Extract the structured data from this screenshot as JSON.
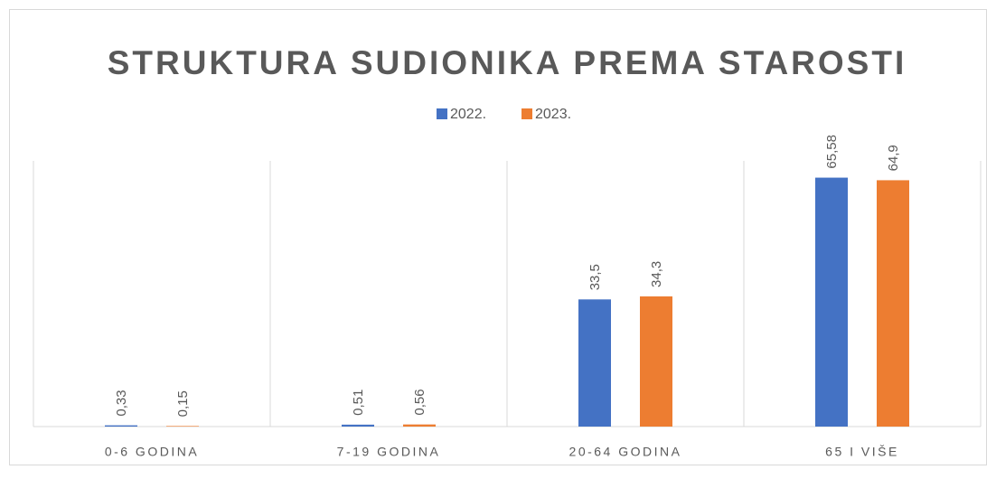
{
  "chart_data": {
    "type": "bar",
    "title": "STRUKTURA SUDIONIKA PREMA STAROSTI",
    "categories": [
      "0-6 GODINA",
      "7-19 GODINA",
      "20-64 GODINA",
      "65 I VIŠE"
    ],
    "series": [
      {
        "name": "2022.",
        "color": "#4472c4",
        "values": [
          0.33,
          0.51,
          33.5,
          65.58
        ],
        "value_labels": [
          "0,33",
          "0,51",
          "33,5",
          "65,58"
        ]
      },
      {
        "name": "2023.",
        "color": "#ed7d31",
        "values": [
          0.15,
          0.56,
          34.3,
          64.9
        ],
        "value_labels": [
          "0,15",
          "0,56",
          "34,3",
          "64,9"
        ]
      }
    ],
    "ylim": [
      0,
      70
    ],
    "grid": false,
    "legend": "top"
  }
}
